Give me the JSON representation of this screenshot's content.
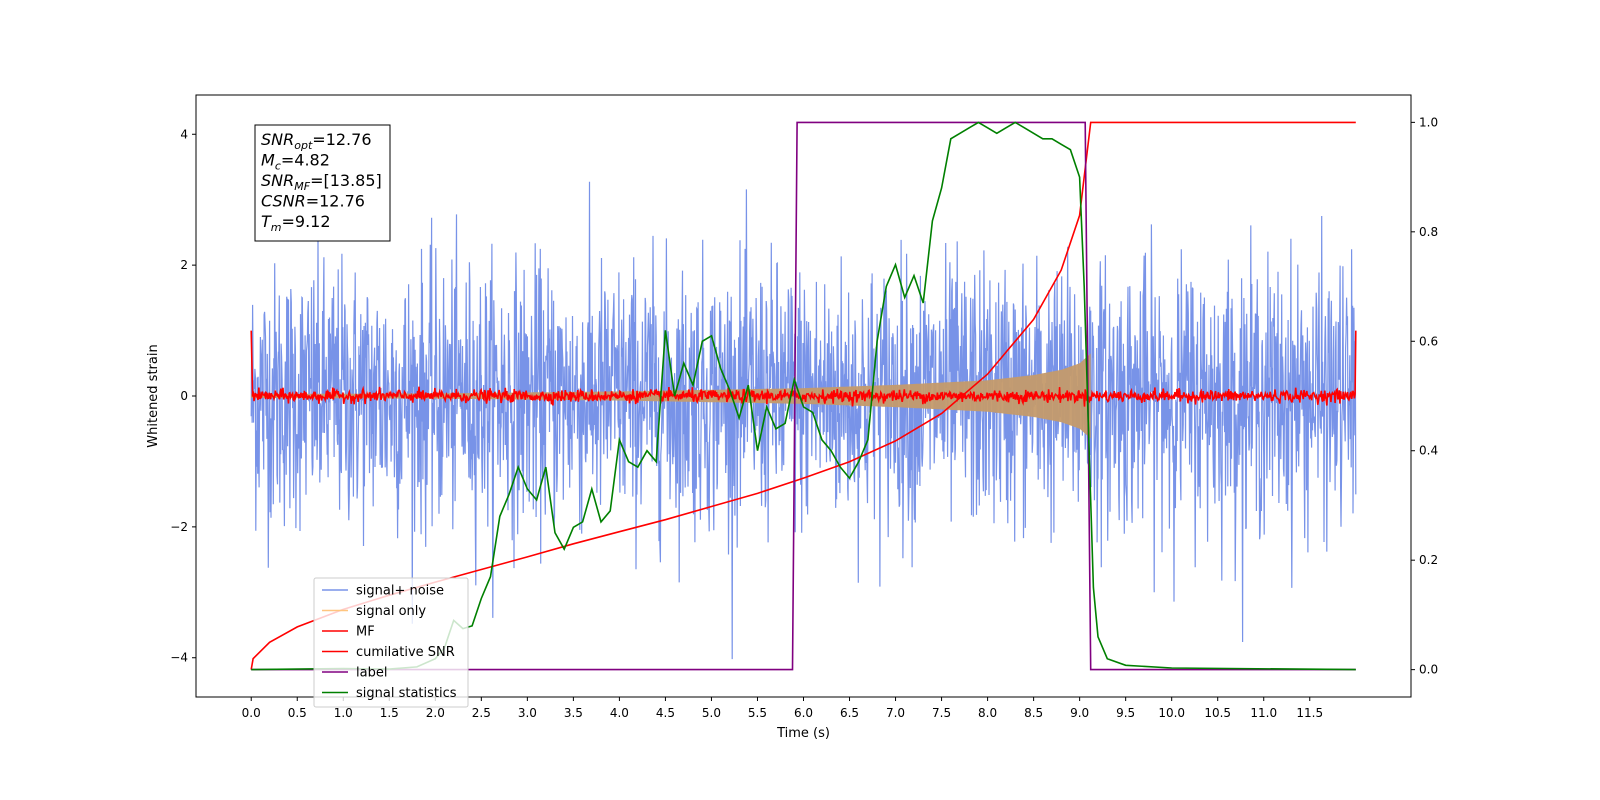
{
  "chart_data": {
    "type": "line",
    "xlabel": "Time (s)",
    "ylabel": "Whitened strain",
    "xlim": [
      -0.6,
      12.6
    ],
    "ylim": [
      -4.6,
      4.6
    ],
    "y2lim": [
      -0.05,
      1.05
    ],
    "grid": false,
    "legend_position": "lower-left",
    "x_ticks": [
      "0.0",
      "0.5",
      "1.0",
      "1.5",
      "2.0",
      "2.5",
      "3.0",
      "3.5",
      "4.0",
      "4.5",
      "5.0",
      "5.5",
      "6.0",
      "6.5",
      "7.0",
      "7.5",
      "8.0",
      "8.5",
      "9.0",
      "9.5",
      "10.0",
      "10.5",
      "11.0",
      "11.5"
    ],
    "y_ticks": [
      "−4",
      "−2",
      "0",
      "2",
      "4"
    ],
    "y2_ticks": [
      "0.0",
      "0.2",
      "0.4",
      "0.6",
      "0.8",
      "1.0"
    ],
    "colors": {
      "noise": "#7893e8",
      "signal": "#c49a6c",
      "mf": "#ff0000",
      "csnr": "#ff0000",
      "label": "#800080",
      "stats": "#008000",
      "legend_signal": "#ffc57f"
    },
    "stats_box": {
      "snr_opt_main": "SNR",
      "snr_opt_sub": "opt",
      "snr_opt_value": "=12.76",
      "mc_main": "M",
      "mc_sub": "c",
      "mc_value": "=4.82",
      "snr_mf_main": "SNR",
      "snr_mf_sub": "MF",
      "snr_mf_value": "=[13.85]",
      "csnr_main": "CSNR",
      "csnr_value": "=12.76",
      "tm_main": "T",
      "tm_sub": "m",
      "tm_value": "=9.12"
    },
    "series": [
      {
        "name": "signal+ noise",
        "axis": "left",
        "kind": "noise",
        "t_start": 0.0,
        "t_end": 12.0,
        "amplitude": 1.0
      },
      {
        "name": "signal only",
        "axis": "left",
        "kind": "chirp-envelope",
        "t_start": 0.0,
        "t_end": 9.12,
        "envelope": [
          [
            0.0,
            0.03
          ],
          [
            2.0,
            0.04
          ],
          [
            4.0,
            0.07
          ],
          [
            6.0,
            0.12
          ],
          [
            7.0,
            0.17
          ],
          [
            8.0,
            0.24
          ],
          [
            8.5,
            0.32
          ],
          [
            8.8,
            0.4
          ],
          [
            9.0,
            0.5
          ],
          [
            9.12,
            0.65
          ]
        ]
      },
      {
        "name": "MF",
        "axis": "left",
        "kind": "mf",
        "t_start": 0.0,
        "t_end": 12.0,
        "baseline": 0.0,
        "jitter": 0.08,
        "edge_value": 1.0
      },
      {
        "name": "cumilative SNR",
        "axis": "right",
        "points": [
          [
            0.0,
            0.0
          ],
          [
            0.02,
            0.02
          ],
          [
            0.2,
            0.05
          ],
          [
            0.5,
            0.078
          ],
          [
            1.0,
            0.11
          ],
          [
            1.5,
            0.136
          ],
          [
            2.0,
            0.16
          ],
          [
            2.5,
            0.183
          ],
          [
            3.0,
            0.206
          ],
          [
            3.5,
            0.23
          ],
          [
            4.0,
            0.252
          ],
          [
            4.5,
            0.274
          ],
          [
            5.0,
            0.298
          ],
          [
            5.5,
            0.322
          ],
          [
            6.0,
            0.35
          ],
          [
            6.5,
            0.38
          ],
          [
            7.0,
            0.418
          ],
          [
            7.5,
            0.468
          ],
          [
            8.0,
            0.54
          ],
          [
            8.5,
            0.64
          ],
          [
            8.8,
            0.73
          ],
          [
            9.0,
            0.83
          ],
          [
            9.12,
            1.0
          ],
          [
            12.0,
            1.0
          ]
        ]
      },
      {
        "name": "label",
        "axis": "right",
        "points": [
          [
            0.0,
            0.0
          ],
          [
            5.88,
            0.0
          ],
          [
            5.93,
            1.0
          ],
          [
            9.06,
            1.0
          ],
          [
            9.12,
            0.0
          ],
          [
            12.0,
            0.0
          ]
        ]
      },
      {
        "name": "signal statistics",
        "axis": "right",
        "points": [
          [
            0.0,
            0.0
          ],
          [
            1.0,
            0.002
          ],
          [
            1.5,
            0.001
          ],
          [
            1.8,
            0.005
          ],
          [
            2.0,
            0.02
          ],
          [
            2.1,
            0.04
          ],
          [
            2.2,
            0.09
          ],
          [
            2.3,
            0.075
          ],
          [
            2.4,
            0.08
          ],
          [
            2.5,
            0.13
          ],
          [
            2.6,
            0.17
          ],
          [
            2.7,
            0.28
          ],
          [
            2.8,
            0.32
          ],
          [
            2.9,
            0.37
          ],
          [
            3.0,
            0.33
          ],
          [
            3.1,
            0.31
          ],
          [
            3.2,
            0.37
          ],
          [
            3.3,
            0.25
          ],
          [
            3.4,
            0.22
          ],
          [
            3.5,
            0.26
          ],
          [
            3.6,
            0.27
          ],
          [
            3.7,
            0.33
          ],
          [
            3.8,
            0.27
          ],
          [
            3.9,
            0.29
          ],
          [
            4.0,
            0.42
          ],
          [
            4.1,
            0.38
          ],
          [
            4.2,
            0.37
          ],
          [
            4.3,
            0.4
          ],
          [
            4.4,
            0.38
          ],
          [
            4.5,
            0.62
          ],
          [
            4.6,
            0.5
          ],
          [
            4.7,
            0.56
          ],
          [
            4.8,
            0.52
          ],
          [
            4.9,
            0.6
          ],
          [
            5.0,
            0.61
          ],
          [
            5.1,
            0.55
          ],
          [
            5.2,
            0.51
          ],
          [
            5.3,
            0.46
          ],
          [
            5.4,
            0.52
          ],
          [
            5.5,
            0.4
          ],
          [
            5.6,
            0.48
          ],
          [
            5.7,
            0.44
          ],
          [
            5.8,
            0.45
          ],
          [
            5.9,
            0.53
          ],
          [
            6.0,
            0.48
          ],
          [
            6.1,
            0.47
          ],
          [
            6.2,
            0.42
          ],
          [
            6.3,
            0.4
          ],
          [
            6.4,
            0.37
          ],
          [
            6.5,
            0.35
          ],
          [
            6.6,
            0.38
          ],
          [
            6.7,
            0.42
          ],
          [
            6.8,
            0.6
          ],
          [
            6.9,
            0.7
          ],
          [
            7.0,
            0.74
          ],
          [
            7.1,
            0.68
          ],
          [
            7.2,
            0.72
          ],
          [
            7.3,
            0.67
          ],
          [
            7.4,
            0.82
          ],
          [
            7.5,
            0.88
          ],
          [
            7.6,
            0.97
          ],
          [
            7.7,
            0.98
          ],
          [
            7.8,
            0.99
          ],
          [
            7.9,
            1.0
          ],
          [
            8.0,
            0.99
          ],
          [
            8.1,
            0.98
          ],
          [
            8.2,
            0.99
          ],
          [
            8.3,
            1.0
          ],
          [
            8.4,
            0.99
          ],
          [
            8.5,
            0.98
          ],
          [
            8.6,
            0.97
          ],
          [
            8.7,
            0.97
          ],
          [
            8.8,
            0.96
          ],
          [
            8.9,
            0.95
          ],
          [
            9.0,
            0.9
          ],
          [
            9.05,
            0.7
          ],
          [
            9.1,
            0.42
          ],
          [
            9.15,
            0.15
          ],
          [
            9.2,
            0.06
          ],
          [
            9.3,
            0.02
          ],
          [
            9.5,
            0.008
          ],
          [
            10.0,
            0.003
          ],
          [
            12.0,
            0.0
          ]
        ]
      }
    ],
    "legend": [
      {
        "label": "signal+ noise",
        "color": "#7893e8"
      },
      {
        "label": "signal only",
        "color": "#ffc57f"
      },
      {
        "label": "MF",
        "color": "#ff0000"
      },
      {
        "label": "cumilative SNR",
        "color": "#ff0000"
      },
      {
        "label": "label",
        "color": "#800080"
      },
      {
        "label": "signal statistics",
        "color": "#008000"
      }
    ]
  }
}
